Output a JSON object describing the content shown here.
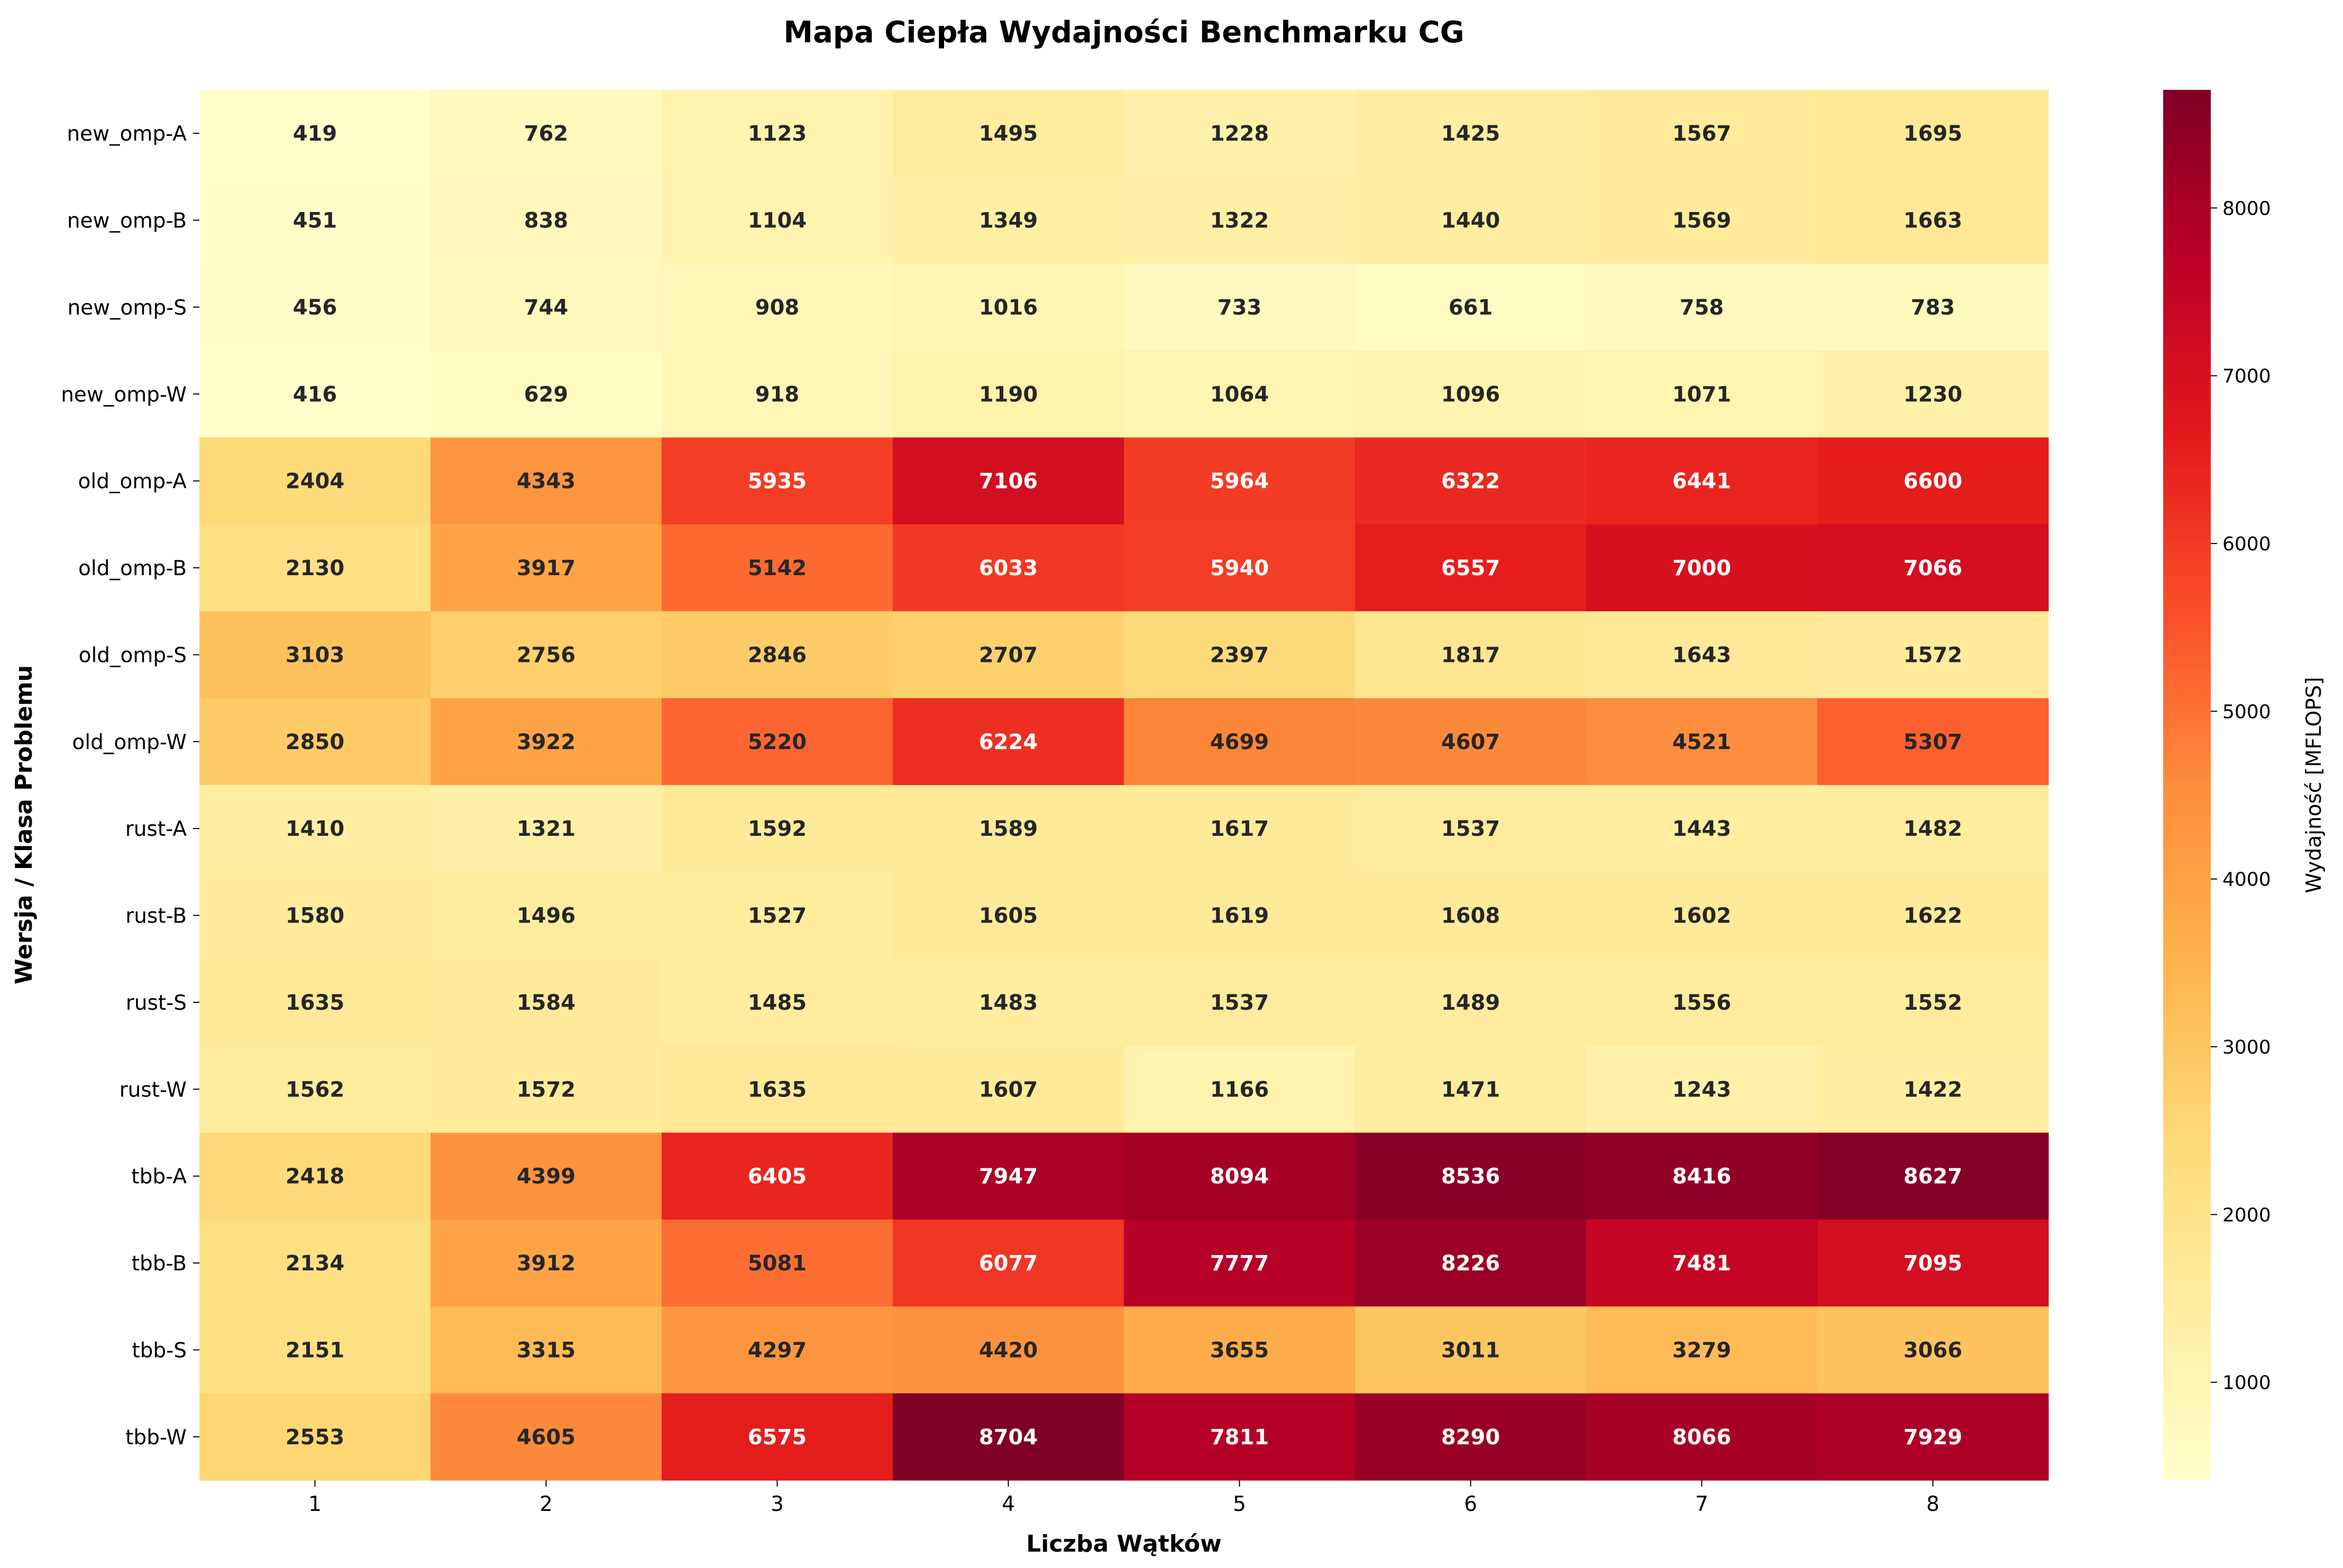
{
  "chart_data": {
    "type": "heatmap",
    "title": "Mapa Ciepła Wydajności Benchmarku CG",
    "xlabel": "Liczba Wątków",
    "ylabel": "Wersja / Klasa Problemu",
    "colorbar_label": "Wydajność [MFLOPS]",
    "colormap": "YlOrRd",
    "colorbar_ticks": [
      1000,
      2000,
      3000,
      4000,
      5000,
      6000,
      7000,
      8000
    ],
    "vmin": 416,
    "vmax": 8704,
    "x": [
      "1",
      "2",
      "3",
      "4",
      "5",
      "6",
      "7",
      "8"
    ],
    "y": [
      "new_omp-A",
      "new_omp-B",
      "new_omp-S",
      "new_omp-W",
      "old_omp-A",
      "old_omp-B",
      "old_omp-S",
      "old_omp-W",
      "rust-A",
      "rust-B",
      "rust-S",
      "rust-W",
      "tbb-A",
      "tbb-B",
      "tbb-S",
      "tbb-W"
    ],
    "values": [
      [
        419,
        762,
        1123,
        1495,
        1228,
        1425,
        1567,
        1695
      ],
      [
        451,
        838,
        1104,
        1349,
        1322,
        1440,
        1569,
        1663
      ],
      [
        456,
        744,
        908,
        1016,
        733,
        661,
        758,
        783
      ],
      [
        416,
        629,
        918,
        1190,
        1064,
        1096,
        1071,
        1230
      ],
      [
        2404,
        4343,
        5935,
        7106,
        5964,
        6322,
        6441,
        6600
      ],
      [
        2130,
        3917,
        5142,
        6033,
        5940,
        6557,
        7000,
        7066
      ],
      [
        3103,
        2756,
        2846,
        2707,
        2397,
        1817,
        1643,
        1572
      ],
      [
        2850,
        3922,
        5220,
        6224,
        4699,
        4607,
        4521,
        5307
      ],
      [
        1410,
        1321,
        1592,
        1589,
        1617,
        1537,
        1443,
        1482
      ],
      [
        1580,
        1496,
        1527,
        1605,
        1619,
        1608,
        1602,
        1622
      ],
      [
        1635,
        1584,
        1485,
        1483,
        1537,
        1489,
        1556,
        1552
      ],
      [
        1562,
        1572,
        1635,
        1607,
        1166,
        1471,
        1243,
        1422
      ],
      [
        2418,
        4399,
        6405,
        7947,
        8094,
        8536,
        8416,
        8627
      ],
      [
        2134,
        3912,
        5081,
        6077,
        7777,
        8226,
        7481,
        7095
      ],
      [
        2151,
        3315,
        4297,
        4420,
        3655,
        3011,
        3279,
        3066
      ],
      [
        2553,
        4605,
        6575,
        8704,
        7811,
        8290,
        8066,
        7929
      ]
    ]
  }
}
